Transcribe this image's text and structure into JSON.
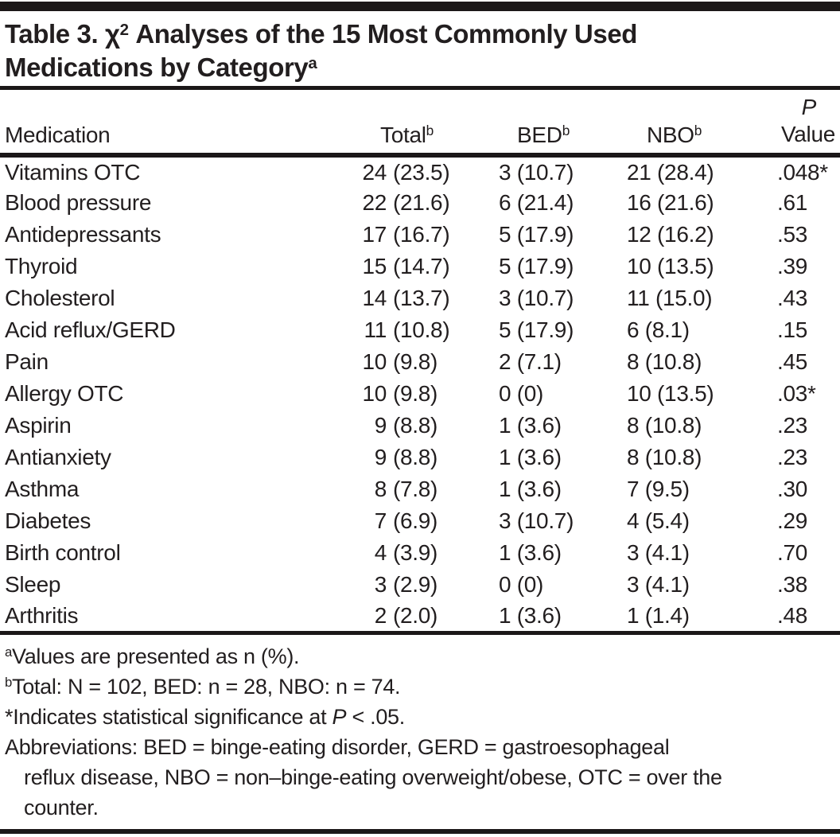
{
  "title": {
    "line1_pre": "Table 3. χ",
    "line1_sup": "2",
    "line1_post": " Analyses of the 15 Most Commonly Used",
    "line2_text": "Medications by Category",
    "line2_sup": "a"
  },
  "table": {
    "headers": {
      "medication": "Medication",
      "total_text": "Total",
      "total_sup": "b",
      "bed_text": "BED",
      "bed_sup": "b",
      "nbo_text": "NBO",
      "nbo_sup": "b",
      "p_line1": "P",
      "p_line2": "Value"
    },
    "rows": [
      {
        "medication": "Vitamins OTC",
        "total_n": "24",
        "total_pct": "(23.5)",
        "bed": "3 (10.7)",
        "nbo": "21 (28.4)",
        "p": ".048*"
      },
      {
        "medication": "Blood pressure",
        "total_n": "22",
        "total_pct": "(21.6)",
        "bed": "6 (21.4)",
        "nbo": "16 (21.6)",
        "p": ".61"
      },
      {
        "medication": "Antidepressants",
        "total_n": "17",
        "total_pct": "(16.7)",
        "bed": "5 (17.9)",
        "nbo": "12 (16.2)",
        "p": ".53"
      },
      {
        "medication": "Thyroid",
        "total_n": "15",
        "total_pct": "(14.7)",
        "bed": "5 (17.9)",
        "nbo": "10 (13.5)",
        "p": ".39"
      },
      {
        "medication": "Cholesterol",
        "total_n": "14",
        "total_pct": "(13.7)",
        "bed": "3 (10.7)",
        "nbo": "11 (15.0)",
        "p": ".43"
      },
      {
        "medication": "Acid reflux/GERD",
        "total_n": "11",
        "total_pct": "(10.8)",
        "bed": "5 (17.9)",
        "nbo": "6 (8.1)",
        "p": ".15"
      },
      {
        "medication": "Pain",
        "total_n": "10",
        "total_pct": "(9.8)",
        "bed": "2 (7.1)",
        "nbo": "8 (10.8)",
        "p": ".45"
      },
      {
        "medication": "Allergy OTC",
        "total_n": "10",
        "total_pct": "(9.8)",
        "bed": "0 (0)",
        "nbo": "10 (13.5)",
        "p": ".03*"
      },
      {
        "medication": "Aspirin",
        "total_n": "9",
        "total_pct": "(8.8)",
        "bed": "1 (3.6)",
        "nbo": "8 (10.8)",
        "p": ".23"
      },
      {
        "medication": "Antianxiety",
        "total_n": "9",
        "total_pct": "(8.8)",
        "bed": "1 (3.6)",
        "nbo": "8 (10.8)",
        "p": ".23"
      },
      {
        "medication": "Asthma",
        "total_n": "8",
        "total_pct": "(7.8)",
        "bed": "1 (3.6)",
        "nbo": "7 (9.5)",
        "p": ".30"
      },
      {
        "medication": "Diabetes",
        "total_n": "7",
        "total_pct": "(6.9)",
        "bed": "3 (10.7)",
        "nbo": "4 (5.4)",
        "p": ".29"
      },
      {
        "medication": "Birth control",
        "total_n": "4",
        "total_pct": "(3.9)",
        "bed": "1 (3.6)",
        "nbo": "3 (4.1)",
        "p": ".70"
      },
      {
        "medication": "Sleep",
        "total_n": "3",
        "total_pct": "(2.9)",
        "bed": "0 (0)",
        "nbo": "3 (4.1)",
        "p": ".38"
      },
      {
        "medication": "Arthritis",
        "total_n": "2",
        "total_pct": "(2.0)",
        "bed": "1 (3.6)",
        "nbo": "1 (1.4)",
        "p": ".48"
      }
    ]
  },
  "footnotes": {
    "a_marker": "a",
    "a_text": "Values are presented as n (%).",
    "b_marker": "b",
    "b_text": "Total: N = 102, BED: n = 28, NBO: n = 74.",
    "sig_marker": "*",
    "sig_pre": "Indicates statistical significance at ",
    "sig_italic": "P",
    "sig_post": " < .05.",
    "abbrev_line1": "Abbreviations: BED = binge-eating disorder, GERD = gastroesophageal",
    "abbrev_line2": "reflux disease, NBO = non–binge-eating overweight/obese, OTC = over the",
    "abbrev_line3": "counter."
  },
  "colors": {
    "ink": "#221e1f",
    "rule": "#1b1718",
    "background": "#ffffff"
  }
}
